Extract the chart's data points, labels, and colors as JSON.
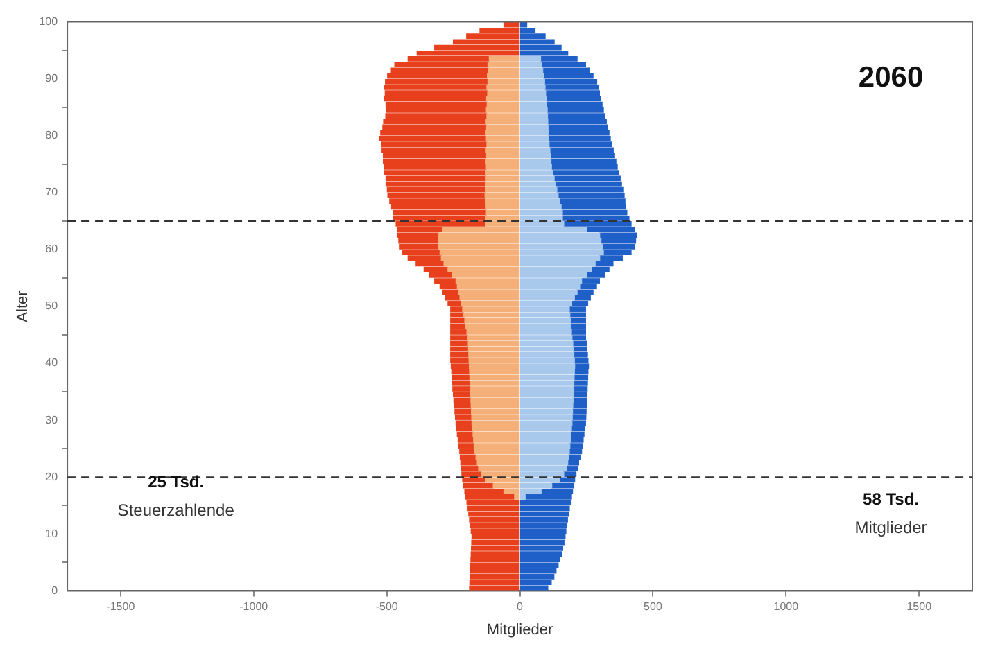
{
  "chart_data": {
    "type": "bar",
    "orientation": "horizontal",
    "stacked": true,
    "xlabel": "Mitglieder",
    "ylabel": "Alter",
    "annotations": [
      "2060",
      "25 Tsd.",
      "Steuerzahlende",
      "58 Tsd.",
      "Mitglieder"
    ],
    "x": [
      99.5,
      98.5,
      97.5,
      96.5,
      95.5,
      94.5,
      93.5,
      92.5,
      91.5,
      90.5,
      89.5,
      88.5,
      87.5,
      86.5,
      85.5,
      84.5,
      83.5,
      82.5,
      81.5,
      80.5,
      79.5,
      78.5,
      77.5,
      76.5,
      75.5,
      74.5,
      73.5,
      72.5,
      71.5,
      70.5,
      69.5,
      68.5,
      67.5,
      66.5,
      65.5,
      64.5,
      63.5,
      62.5,
      61.5,
      60.5,
      59.5,
      58.5,
      57.5,
      56.5,
      55.5,
      54.5,
      53.5,
      52.5,
      51.5,
      50.5,
      49.5,
      48.5,
      47.5,
      46.5,
      45.5,
      44.5,
      43.5,
      42.5,
      41.5,
      40.5,
      39.5,
      38.5,
      37.5,
      36.5,
      35.5,
      34.5,
      33.5,
      32.5,
      31.5,
      30.5,
      29.5,
      28.5,
      27.5,
      26.5,
      25.5,
      24.5,
      23.5,
      22.5,
      21.5,
      20.5,
      19.5,
      18.5,
      17.5,
      16.5,
      15.5,
      14.5,
      13.5,
      12.5,
      11.5,
      10.5,
      9.5,
      8.5,
      7.5,
      6.5,
      5.5,
      4.5,
      3.5,
      2.5,
      1.5,
      0.5
    ],
    "series": [
      {
        "color": "#f5b07a",
        "values": [
          null,
          null,
          null,
          null,
          null,
          null,
          -115,
          -120,
          -118,
          -122,
          -120,
          -124,
          -121,
          -125,
          -123,
          -126,
          -124,
          -127,
          -125,
          -128,
          -126,
          -124,
          -127,
          -125,
          -128,
          -126,
          -129,
          -127,
          -130,
          -128,
          -131,
          -129,
          -127,
          -126,
          -130,
          -130,
          -290,
          -305,
          -305,
          -305,
          -300,
          -295,
          -285,
          -270,
          -255,
          -240,
          -235,
          -230,
          -225,
          -220,
          -215,
          -211,
          -207,
          -203,
          -199,
          -195,
          -194,
          -193,
          -192,
          -191,
          -190,
          -189,
          -188,
          -187,
          -186,
          -185,
          -184,
          -183,
          -182,
          -181,
          -180,
          -178,
          -176,
          -174,
          -172,
          -170,
          -165,
          -160,
          -155,
          -145,
          -130,
          -100,
          -60,
          -20,
          null,
          null,
          null,
          null,
          null,
          null,
          null,
          null,
          null,
          null,
          null,
          null,
          null,
          null,
          null,
          null
        ]
      },
      {
        "color": "#e8401c",
        "values": [
          -60,
          -150,
          -200,
          -250,
          -320,
          -386,
          -305,
          -350,
          -365,
          -375,
          -385,
          -385,
          -385,
          -385,
          -380,
          -375,
          -380,
          -385,
          -390,
          -395,
          -400,
          -395,
          -391,
          -388,
          -385,
          -382,
          -379,
          -376,
          -373,
          -370,
          -365,
          -360,
          -355,
          -350,
          -345,
          -335,
          -170,
          -155,
          -150,
          -145,
          -140,
          -125,
          -105,
          -90,
          -85,
          -80,
          -65,
          -60,
          -55,
          -50,
          -45,
          -49,
          -53,
          -57,
          -61,
          -65,
          -66,
          -67,
          -68,
          -69,
          -68,
          -67,
          -67,
          -67,
          -66,
          -65,
          -64,
          -63,
          -62,
          -61,
          -60,
          -60,
          -59,
          -58,
          -57,
          -56,
          -59,
          -62,
          -65,
          -73,
          -85,
          -111,
          -147,
          -183,
          -199,
          -195,
          -192,
          -189,
          -186,
          -183,
          -180,
          -181,
          -182,
          -183,
          -184,
          -185,
          -186,
          -187,
          -188,
          -189
        ]
      },
      {
        "color": "#a8c8ec",
        "values": [
          null,
          null,
          null,
          null,
          null,
          null,
          78,
          82,
          86,
          90,
          93,
          95,
          97,
          99,
          101,
          103,
          104,
          105,
          106,
          107,
          108,
          110,
          113,
          115,
          117,
          119,
          124,
          129,
          134,
          139,
          144,
          150,
          155,
          160,
          160,
          165,
          250,
          300,
          305,
          310,
          314,
          300,
          283,
          270,
          250,
          232,
          225,
          215,
          205,
          195,
          186,
          188,
          190,
          192,
          194,
          196,
          199,
          201,
          203,
          205,
          206,
          205,
          204,
          203,
          202,
          201,
          200,
          199,
          198,
          197,
          196,
          194,
          192,
          190,
          188,
          186,
          183,
          180,
          175,
          165,
          150,
          120,
          80,
          20,
          null,
          null,
          null,
          null,
          null,
          null,
          null,
          null,
          null,
          null,
          null,
          null,
          null,
          null,
          null,
          null
        ]
      },
      {
        "color": "#1f5fc8",
        "values": [
          26,
          57,
          95,
          129,
          155,
          180,
          137,
          165,
          174,
          185,
          196,
          199,
          202,
          205,
          208,
          211,
          216,
          220,
          224,
          228,
          232,
          235,
          238,
          241,
          244,
          247,
          247,
          248,
          248,
          248,
          248,
          245,
          243,
          242,
          250,
          253,
          180,
          138,
          130,
          120,
          104,
          85,
          67,
          65,
          70,
          67,
          63,
          60,
          60,
          60,
          61,
          59,
          57,
          55,
          53,
          51,
          51,
          51,
          51,
          51,
          52,
          51,
          51,
          51,
          51,
          51,
          51,
          51,
          51,
          51,
          51,
          50,
          49,
          48,
          47,
          46,
          43,
          41,
          41,
          46,
          56,
          82,
          118,
          174,
          190,
          186,
          182,
          179,
          176,
          173,
          170,
          166,
          161,
          156,
          150,
          144,
          136,
          128,
          118,
          105
        ]
      }
    ],
    "xlim": [
      -1700,
      1700
    ],
    "xticks": [
      -1500,
      -1000,
      -500,
      0,
      500,
      1000,
      1500
    ],
    "ylim": [
      0,
      100
    ],
    "yticks": [
      0,
      10,
      20,
      30,
      40,
      50,
      60,
      70,
      80,
      90,
      100
    ],
    "ref_lines": [
      {
        "axis": "y",
        "value": 65,
        "color": "#333333",
        "line_style": "dashed"
      },
      {
        "axis": "y",
        "value": 20,
        "color": "#333333",
        "line_style": "dashed"
      }
    ],
    "grid": false,
    "legend": false
  }
}
